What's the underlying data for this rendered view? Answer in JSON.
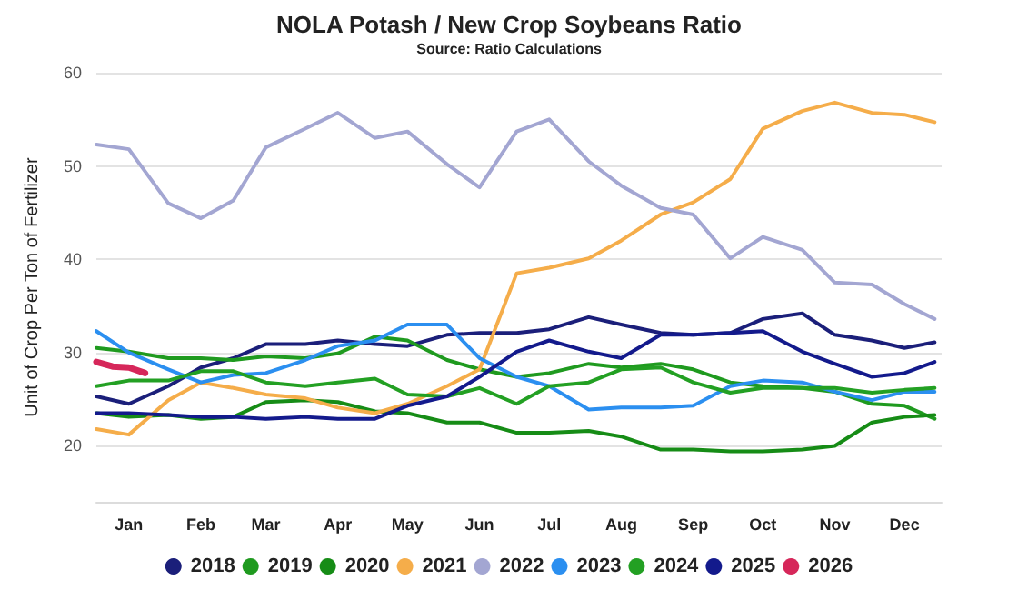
{
  "chart_data": {
    "type": "line",
    "title": "NOLA Potash / New Crop Soybeans Ratio",
    "subtitle": "Source: Ratio Calculations",
    "ylabel": "Unit of Crop Per Ton of Fertilizer",
    "x": [
      "--01-01",
      "--01-15",
      "--02-01",
      "--02-15",
      "--03-01",
      "--03-15",
      "--04-01",
      "--04-15",
      "--05-01",
      "--05-15",
      "--06-01",
      "--06-15",
      "--07-01",
      "--07-15",
      "--08-01",
      "--08-15",
      "--09-01",
      "--09-15",
      "--10-01",
      "--10-15",
      "--11-01",
      "--11-15",
      "--12-01",
      "--12-15",
      "--12-28"
    ],
    "xlim": [
      "--01-01",
      "--12-31"
    ],
    "xticks": [
      {
        "value": "--01-15",
        "label": "Jan"
      },
      {
        "value": "--02-15",
        "label": "Feb"
      },
      {
        "value": "--03-15",
        "label": "Mar"
      },
      {
        "value": "--04-15",
        "label": "Apr"
      },
      {
        "value": "--05-15",
        "label": "May"
      },
      {
        "value": "--06-15",
        "label": "Jun"
      },
      {
        "value": "--07-15",
        "label": "Jul"
      },
      {
        "value": "--08-15",
        "label": "Aug"
      },
      {
        "value": "--09-15",
        "label": "Sep"
      },
      {
        "value": "--10-15",
        "label": "Oct"
      },
      {
        "value": "--11-15",
        "label": "Nov"
      },
      {
        "value": "--12-15",
        "label": "Dec"
      }
    ],
    "ylim": [
      14,
      60
    ],
    "yticks": [
      20,
      30,
      40,
      50,
      60
    ],
    "grid": "y",
    "legend": "bottom",
    "marker": "none",
    "line_style": "solid",
    "series": [
      {
        "name": "2018",
        "color": "#1b1f7a",
        "values": [
          25.3,
          24.5,
          26.4,
          28.4,
          29.4,
          30.9,
          30.9,
          31.3,
          30.9,
          30.7,
          31.9,
          32.1,
          32.1,
          32.5,
          33.8,
          33,
          32.1,
          31.9,
          32.1,
          33.6,
          34.2,
          31.9,
          31.3,
          30.5,
          31.1
        ]
      },
      {
        "name": "2019",
        "color": "#1f9a1f",
        "values": [
          30.5,
          30.1,
          29.4,
          29.4,
          29.2,
          29.6,
          29.4,
          29.9,
          31.7,
          31.3,
          29.2,
          28.2,
          27.4,
          27.8,
          28.8,
          28.4,
          28.8,
          28.2,
          26.8,
          26.4,
          26.2,
          25.8,
          24.5,
          24.3,
          22.9
        ]
      },
      {
        "name": "2020",
        "color": "#168c16",
        "values": [
          23.5,
          23.1,
          23.3,
          22.9,
          23.1,
          24.7,
          24.9,
          24.7,
          23.7,
          23.5,
          22.5,
          22.5,
          21.4,
          21.4,
          21.6,
          21,
          19.6,
          19.6,
          19.4,
          19.4,
          19.6,
          20,
          22.5,
          23.1,
          23.3
        ]
      },
      {
        "name": "2021",
        "color": "#f5ad4a",
        "values": [
          21.8,
          21.2,
          24.9,
          26.8,
          26.2,
          25.5,
          25.1,
          24.1,
          23.5,
          24.5,
          26.4,
          28.2,
          38.5,
          39.1,
          40.1,
          42,
          44.8,
          46.1,
          48.6,
          54,
          55.9,
          56.8,
          55.7,
          55.5,
          54.7
        ]
      },
      {
        "name": "2022",
        "color": "#a3a6d2",
        "values": [
          52.3,
          51.8,
          46,
          44.4,
          46.3,
          52,
          54,
          55.7,
          53,
          53.7,
          50.2,
          47.7,
          53.7,
          55,
          50.5,
          47.9,
          45.5,
          44.8,
          40.1,
          42.4,
          41,
          37.5,
          37.3,
          35.2,
          33.6
        ]
      },
      {
        "name": "2023",
        "color": "#2b8ff0",
        "values": [
          32.3,
          30,
          28.2,
          26.8,
          27.6,
          27.8,
          29.2,
          30.7,
          31.3,
          33,
          33,
          29.4,
          27.4,
          26.4,
          23.9,
          24.1,
          24.1,
          24.3,
          26.4,
          27,
          26.8,
          25.8,
          24.9,
          25.8,
          25.8
        ]
      },
      {
        "name": "2024",
        "color": "#23a023",
        "values": [
          26.4,
          27,
          27,
          28,
          28,
          26.8,
          26.4,
          26.8,
          27.2,
          25.5,
          25.3,
          26.2,
          24.5,
          26.4,
          26.8,
          28.2,
          28.4,
          26.8,
          25.7,
          26.2,
          26.2,
          26.2,
          25.7,
          26,
          26.2
        ]
      },
      {
        "name": "2025",
        "color": "#131a8c",
        "values": [
          23.5,
          23.5,
          23.3,
          23.1,
          23.1,
          22.9,
          23.1,
          22.9,
          22.9,
          24.3,
          25.3,
          27.4,
          30.1,
          31.3,
          30.1,
          29.4,
          31.9,
          31.9,
          32.1,
          32.3,
          30.1,
          28.8,
          27.4,
          27.8,
          29
        ]
      },
      {
        "name": "2026",
        "color": "#d6275a",
        "x": [
          "--01-01",
          "--01-08",
          "--01-15",
          "--01-22"
        ],
        "values": [
          29,
          28.5,
          28.4,
          27.8
        ]
      }
    ]
  }
}
